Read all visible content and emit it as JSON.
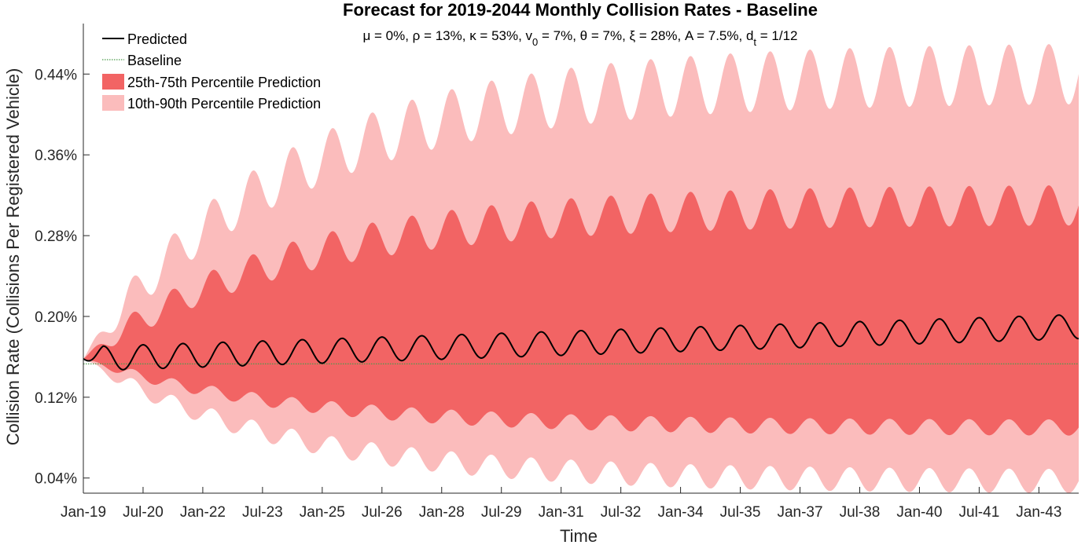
{
  "chart_data": {
    "type": "area",
    "title": "Forecast for 2019-2044 Monthly Collision Rates - Baseline",
    "subtitle": {
      "prefix": "μ = 0%, ρ = 13%, κ = 53%, v",
      "sub1": "0",
      "middle": " = 7%, θ = 7%, ξ = 28%, A = 7.5%, d",
      "sub2": "t",
      "suffix": " = 1/12"
    },
    "xlabel": "Time",
    "ylabel": "Collision Rate (Collisions Per Registered Vehicle)",
    "x_range_months": [
      0,
      300
    ],
    "ylim": [
      0.025,
      0.49
    ],
    "x_ticks": [
      {
        "month": 0,
        "label": "Jan-19"
      },
      {
        "month": 18,
        "label": "Jul-20"
      },
      {
        "month": 36,
        "label": "Jan-22"
      },
      {
        "month": 54,
        "label": "Jul-23"
      },
      {
        "month": 72,
        "label": "Jan-25"
      },
      {
        "month": 90,
        "label": "Jul-26"
      },
      {
        "month": 108,
        "label": "Jan-28"
      },
      {
        "month": 126,
        "label": "Jul-29"
      },
      {
        "month": 144,
        "label": "Jan-31"
      },
      {
        "month": 162,
        "label": "Jul-32"
      },
      {
        "month": 180,
        "label": "Jan-34"
      },
      {
        "month": 198,
        "label": "Jul-35"
      },
      {
        "month": 216,
        "label": "Jan-37"
      },
      {
        "month": 234,
        "label": "Jul-38"
      },
      {
        "month": 252,
        "label": "Jan-40"
      },
      {
        "month": 270,
        "label": "Jul-41"
      },
      {
        "month": 288,
        "label": "Jan-43"
      }
    ],
    "y_ticks": [
      {
        "value": 0.04,
        "label": "0.04%"
      },
      {
        "value": 0.12,
        "label": "0.12%"
      },
      {
        "value": 0.2,
        "label": "0.20%"
      },
      {
        "value": 0.28,
        "label": "0.28%"
      },
      {
        "value": 0.36,
        "label": "0.36%"
      },
      {
        "value": 0.44,
        "label": "0.44%"
      }
    ],
    "period_months": 12,
    "series": [
      {
        "name": "Predicted",
        "color": "#000000",
        "start": 0.158,
        "center_start": 0.158,
        "center_end": 0.19,
        "amplitude": 0.012
      },
      {
        "name": "Baseline",
        "color": "#4d9a4d",
        "value": 0.153
      },
      {
        "name": "25th-75th Percentile Prediction",
        "color": "#f26464",
        "start": 0.158,
        "upper_final": 0.31,
        "lower_final": 0.09,
        "amplitude_final": 0.02
      },
      {
        "name": "10th-90th Percentile Prediction",
        "color": "#fbbcbc",
        "start": 0.158,
        "upper_final": 0.44,
        "lower_final": 0.037,
        "amplitude_final": 0.03
      }
    ],
    "legend_position": "top-left"
  }
}
